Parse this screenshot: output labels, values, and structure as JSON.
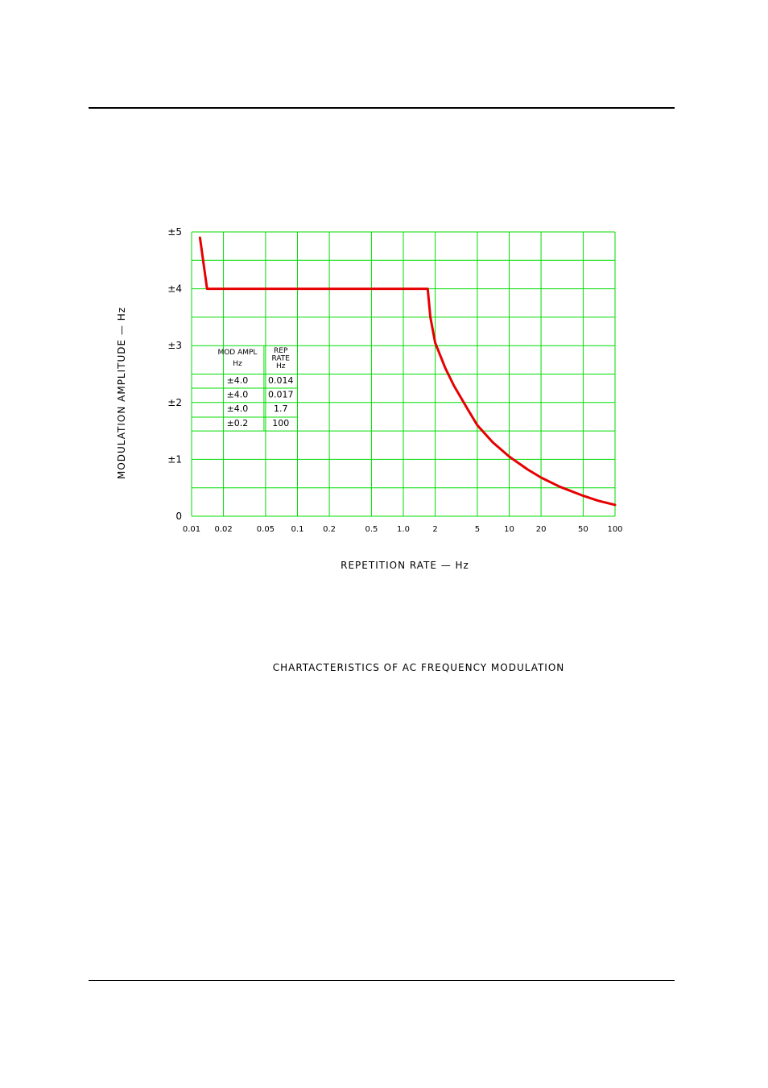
{
  "caption": "CHARTACTERISTICS OF AC FREQUENCY MODULATION",
  "colors": {
    "grid": "#00dd00",
    "curve": "#e60000",
    "text": "#000000"
  },
  "chart_data": {
    "type": "line",
    "xscale": "log",
    "xlabel": "REPETITION RATE  —  Hz",
    "ylabel": "MODULATION  AMPLITUDE  —  Hz",
    "xlim": [
      0.01,
      100
    ],
    "ylim": [
      0,
      5
    ],
    "grid": true,
    "x_ticks": [
      {
        "v": 0.01,
        "label": "0.01"
      },
      {
        "v": 0.02,
        "label": "0.02"
      },
      {
        "v": 0.05,
        "label": "0.05"
      },
      {
        "v": 0.1,
        "label": "0.1"
      },
      {
        "v": 0.2,
        "label": "0.2"
      },
      {
        "v": 0.5,
        "label": "0.5"
      },
      {
        "v": 1.0,
        "label": "1.0"
      },
      {
        "v": 2,
        "label": "2"
      },
      {
        "v": 5,
        "label": "5"
      },
      {
        "v": 10,
        "label": "10"
      },
      {
        "v": 20,
        "label": "20"
      },
      {
        "v": 50,
        "label": "50"
      },
      {
        "v": 100,
        "label": "100"
      }
    ],
    "y_ticks": [
      {
        "v": 0,
        "label": "0"
      },
      {
        "v": 1,
        "label": "±1"
      },
      {
        "v": 2,
        "label": "±2"
      },
      {
        "v": 3,
        "label": "±3"
      },
      {
        "v": 4,
        "label": "±4"
      },
      {
        "v": 5,
        "label": "±5"
      }
    ],
    "y_minor": [
      0.5,
      1.5,
      2.5,
      3.5,
      4.5
    ],
    "series": [
      {
        "points": [
          [
            0.012,
            4.9
          ],
          [
            0.014,
            4.0
          ],
          [
            0.2,
            4.0
          ],
          [
            1.0,
            4.0
          ],
          [
            1.7,
            4.0
          ],
          [
            1.8,
            3.5
          ],
          [
            2.0,
            3.05
          ],
          [
            2.5,
            2.6
          ],
          [
            3,
            2.3
          ],
          [
            4,
            1.9
          ],
          [
            5,
            1.6
          ],
          [
            7,
            1.3
          ],
          [
            10,
            1.05
          ],
          [
            15,
            0.82
          ],
          [
            20,
            0.68
          ],
          [
            30,
            0.52
          ],
          [
            50,
            0.36
          ],
          [
            70,
            0.27
          ],
          [
            100,
            0.2
          ]
        ]
      }
    ],
    "table": {
      "headers": [
        [
          "MOD AMPL",
          "Hz"
        ],
        [
          "REP",
          "RATE",
          "Hz"
        ]
      ],
      "rows": [
        [
          "±4.0",
          "0.014"
        ],
        [
          "±4.0",
          "0.017"
        ],
        [
          "±4.0",
          "1.7"
        ],
        [
          "±0.2",
          "100"
        ]
      ]
    }
  }
}
